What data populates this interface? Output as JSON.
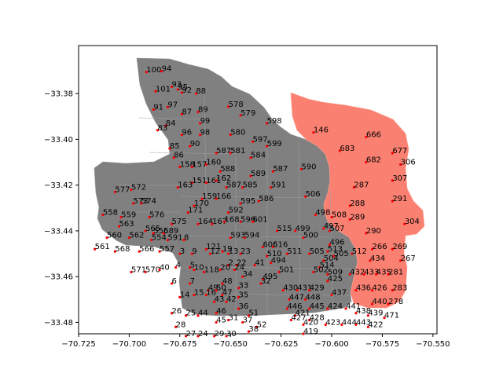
{
  "chart_data": {
    "type": "scatter",
    "title": "",
    "xlabel": "",
    "ylabel": "",
    "xlim": [
      -70.725,
      -70.548
    ],
    "ylim": [
      -33.485,
      -33.359
    ],
    "xticks": [
      -70.725,
      -70.7,
      -70.675,
      -70.65,
      -70.625,
      -70.6,
      -70.575,
      -70.55
    ],
    "yticks": [
      -33.48,
      -33.46,
      -33.44,
      -33.42,
      -33.4,
      -33.38
    ],
    "xtick_labels": [
      "−70.725",
      "−70.700",
      "−70.675",
      "−70.650",
      "−70.625",
      "−70.600",
      "−70.575",
      "−70.550"
    ],
    "ytick_labels": [
      "−33.48",
      "−33.46",
      "−33.44",
      "−33.42",
      "−33.40",
      "−33.38"
    ],
    "grid": false,
    "colors": {
      "base_region": "#808080",
      "highlight_region": "#fa8072",
      "marker": "#ff0000"
    },
    "points": [
      {
        "label": "100",
        "x": -70.6915,
        "y": -33.3706
      },
      {
        "label": "94",
        "x": -70.684,
        "y": -33.3702
      },
      {
        "label": "101",
        "x": -70.687,
        "y": -33.379
      },
      {
        "label": "93",
        "x": -70.679,
        "y": -33.377
      },
      {
        "label": "95",
        "x": -70.676,
        "y": -33.3782
      },
      {
        "label": "92",
        "x": -70.674,
        "y": -33.3796
      },
      {
        "label": "88",
        "x": -70.667,
        "y": -33.38
      },
      {
        "label": "97",
        "x": -70.681,
        "y": -33.3859
      },
      {
        "label": "91",
        "x": -70.688,
        "y": -33.387
      },
      {
        "label": "87",
        "x": -70.674,
        "y": -33.389
      },
      {
        "label": "89",
        "x": -70.666,
        "y": -33.388
      },
      {
        "label": "578",
        "x": -70.651,
        "y": -33.3857
      },
      {
        "label": "579",
        "x": -70.645,
        "y": -33.3895
      },
      {
        "label": "84",
        "x": -70.682,
        "y": -33.394
      },
      {
        "label": "83",
        "x": -70.686,
        "y": -33.396
      },
      {
        "label": "99",
        "x": -70.665,
        "y": -33.393
      },
      {
        "label": "96",
        "x": -70.674,
        "y": -33.398
      },
      {
        "label": "98",
        "x": -70.665,
        "y": -33.398
      },
      {
        "label": "580",
        "x": -70.65,
        "y": -33.398
      },
      {
        "label": "598",
        "x": -70.632,
        "y": -33.393
      },
      {
        "label": "146",
        "x": -70.609,
        "y": -33.397
      },
      {
        "label": "666",
        "x": -70.583,
        "y": -33.399
      },
      {
        "label": "85",
        "x": -70.68,
        "y": -33.404
      },
      {
        "label": "90",
        "x": -70.67,
        "y": -33.403
      },
      {
        "label": "597",
        "x": -70.639,
        "y": -33.401
      },
      {
        "label": "599",
        "x": -70.632,
        "y": -33.403
      },
      {
        "label": "86",
        "x": -70.678,
        "y": -33.408
      },
      {
        "label": "587",
        "x": -70.657,
        "y": -33.406
      },
      {
        "label": "581",
        "x": -70.65,
        "y": -33.406
      },
      {
        "label": "584",
        "x": -70.64,
        "y": -33.408
      },
      {
        "label": "683",
        "x": -70.596,
        "y": -33.405
      },
      {
        "label": "677",
        "x": -70.57,
        "y": -33.406
      },
      {
        "label": "158",
        "x": -70.675,
        "y": -33.412
      },
      {
        "label": "157",
        "x": -70.669,
        "y": -33.412
      },
      {
        "label": "160",
        "x": -70.662,
        "y": -33.411
      },
      {
        "label": "682",
        "x": -70.583,
        "y": -33.41
      },
      {
        "label": "306",
        "x": -70.566,
        "y": -33.411
      },
      {
        "label": "588",
        "x": -70.655,
        "y": -33.414
      },
      {
        "label": "589",
        "x": -70.64,
        "y": -33.416
      },
      {
        "label": "587",
        "x": -70.629,
        "y": -33.414
      },
      {
        "label": "590",
        "x": -70.615,
        "y": -33.413
      },
      {
        "label": "307",
        "x": -70.57,
        "y": -33.418
      },
      {
        "label": "151",
        "x": -70.669,
        "y": -33.419
      },
      {
        "label": "161",
        "x": -70.662,
        "y": -33.419
      },
      {
        "label": "162",
        "x": -70.657,
        "y": -33.418
      },
      {
        "label": "587",
        "x": -70.652,
        "y": -33.421
      },
      {
        "label": "585",
        "x": -70.644,
        "y": -33.421
      },
      {
        "label": "591",
        "x": -70.63,
        "y": -33.421
      },
      {
        "label": "163",
        "x": -70.676,
        "y": -33.421
      },
      {
        "label": "287",
        "x": -70.589,
        "y": -33.421
      },
      {
        "label": "577",
        "x": -70.707,
        "y": -33.423
      },
      {
        "label": "572",
        "x": -70.699,
        "y": -33.422
      },
      {
        "label": "506",
        "x": -70.613,
        "y": -33.425
      },
      {
        "label": "291",
        "x": -70.57,
        "y": -33.427
      },
      {
        "label": "159",
        "x": -70.664,
        "y": -33.426
      },
      {
        "label": "166",
        "x": -70.657,
        "y": -33.426
      },
      {
        "label": "595",
        "x": -70.645,
        "y": -33.428
      },
      {
        "label": "586",
        "x": -70.636,
        "y": -33.427
      },
      {
        "label": "573",
        "x": -70.698,
        "y": -33.428
      },
      {
        "label": "574",
        "x": -70.694,
        "y": -33.428
      },
      {
        "label": "170",
        "x": -70.668,
        "y": -33.429
      },
      {
        "label": "288",
        "x": -70.591,
        "y": -33.429
      },
      {
        "label": "171",
        "x": -70.671,
        "y": -33.432
      },
      {
        "label": "592",
        "x": -70.651,
        "y": -33.432
      },
      {
        "label": "498",
        "x": -70.608,
        "y": -33.433
      },
      {
        "label": "508",
        "x": -70.6,
        "y": -33.434
      },
      {
        "label": "558",
        "x": -70.713,
        "y": -33.433
      },
      {
        "label": "559",
        "x": -70.704,
        "y": -33.434
      },
      {
        "label": "576",
        "x": -70.69,
        "y": -33.434
      },
      {
        "label": "289",
        "x": -70.591,
        "y": -33.435
      },
      {
        "label": "575",
        "x": -70.679,
        "y": -33.437
      },
      {
        "label": "164",
        "x": -70.666,
        "y": -33.437
      },
      {
        "label": "167",
        "x": -70.659,
        "y": -33.437
      },
      {
        "label": "168",
        "x": -70.653,
        "y": -33.436
      },
      {
        "label": "596",
        "x": -70.645,
        "y": -33.436
      },
      {
        "label": "601",
        "x": -70.639,
        "y": -33.436
      },
      {
        "label": "304",
        "x": -70.564,
        "y": -33.437
      },
      {
        "label": "563",
        "x": -70.705,
        "y": -33.438
      },
      {
        "label": "565",
        "x": -70.692,
        "y": -33.44
      },
      {
        "label": "556",
        "x": -70.688,
        "y": -33.441
      },
      {
        "label": "589",
        "x": -70.683,
        "y": -33.441
      },
      {
        "label": "497",
        "x": -70.604,
        "y": -33.439
      },
      {
        "label": "515",
        "x": -70.627,
        "y": -33.44
      },
      {
        "label": "499",
        "x": -70.618,
        "y": -33.44
      },
      {
        "label": "507",
        "x": -70.601,
        "y": -33.44
      },
      {
        "label": "290",
        "x": -70.583,
        "y": -33.441
      },
      {
        "label": "560",
        "x": -70.711,
        "y": -33.443
      },
      {
        "label": "562",
        "x": -70.7,
        "y": -33.443
      },
      {
        "label": "554",
        "x": -70.689,
        "y": -33.444
      },
      {
        "label": "591",
        "x": -70.681,
        "y": -33.444
      },
      {
        "label": "8",
        "x": -70.673,
        "y": -33.444
      },
      {
        "label": "593",
        "x": -70.65,
        "y": -33.443
      },
      {
        "label": "594",
        "x": -70.643,
        "y": -33.443
      },
      {
        "label": "500",
        "x": -70.614,
        "y": -33.443
      },
      {
        "label": "496",
        "x": -70.601,
        "y": -33.446
      },
      {
        "label": "606",
        "x": -70.634,
        "y": -33.447
      },
      {
        "label": "516",
        "x": -70.629,
        "y": -33.447
      },
      {
        "label": "121",
        "x": -70.662,
        "y": -33.448
      },
      {
        "label": "19",
        "x": -70.654,
        "y": -33.449
      },
      {
        "label": "266",
        "x": -70.58,
        "y": -33.448
      },
      {
        "label": "269",
        "x": -70.57,
        "y": -33.448
      },
      {
        "label": "513",
        "x": -70.602,
        "y": -33.449
      },
      {
        "label": "561",
        "x": -70.717,
        "y": -33.448
      },
      {
        "label": "568",
        "x": -70.707,
        "y": -33.449
      },
      {
        "label": "566",
        "x": -70.695,
        "y": -33.449
      },
      {
        "label": "557",
        "x": -70.685,
        "y": -33.449
      },
      {
        "label": "3",
        "x": -70.675,
        "y": -33.45
      },
      {
        "label": "9",
        "x": -70.669,
        "y": -33.45
      },
      {
        "label": "12",
        "x": -70.66,
        "y": -33.45
      },
      {
        "label": "13",
        "x": -70.651,
        "y": -33.45
      },
      {
        "label": "23",
        "x": -70.645,
        "y": -33.45
      },
      {
        "label": "511",
        "x": -70.622,
        "y": -33.45
      },
      {
        "label": "505",
        "x": -70.611,
        "y": -33.45
      },
      {
        "label": "512",
        "x": -70.59,
        "y": -33.45
      },
      {
        "label": "510",
        "x": -70.632,
        "y": -33.451
      },
      {
        "label": "505",
        "x": -70.599,
        "y": -33.451
      },
      {
        "label": "434",
        "x": -70.581,
        "y": -33.453
      },
      {
        "label": "267",
        "x": -70.566,
        "y": -33.453
      },
      {
        "label": "504",
        "x": -70.604,
        "y": -33.453
      },
      {
        "label": "494",
        "x": -70.63,
        "y": -33.454
      },
      {
        "label": "2",
        "x": -70.651,
        "y": -33.455
      },
      {
        "label": "22",
        "x": -70.647,
        "y": -33.455
      },
      {
        "label": "41",
        "x": -70.638,
        "y": -33.455
      },
      {
        "label": "514",
        "x": -70.606,
        "y": -33.456
      },
      {
        "label": "4",
        "x": -70.677,
        "y": -33.456
      },
      {
        "label": "5",
        "x": -70.67,
        "y": -33.456
      },
      {
        "label": "10",
        "x": -70.668,
        "y": -33.457
      },
      {
        "label": "20",
        "x": -70.655,
        "y": -33.457
      },
      {
        "label": "24",
        "x": -70.648,
        "y": -33.457
      },
      {
        "label": "502",
        "x": -70.609,
        "y": -33.458
      },
      {
        "label": "571",
        "x": -70.699,
        "y": -33.458
      },
      {
        "label": "570",
        "x": -70.692,
        "y": -33.458
      },
      {
        "label": "40",
        "x": -70.685,
        "y": -33.457
      },
      {
        "label": "118",
        "x": -70.663,
        "y": -33.458
      },
      {
        "label": "501",
        "x": -70.626,
        "y": -33.458
      },
      {
        "label": "509",
        "x": -70.602,
        "y": -33.459
      },
      {
        "label": "432",
        "x": -70.591,
        "y": -33.459
      },
      {
        "label": "433",
        "x": -70.584,
        "y": -33.459
      },
      {
        "label": "435",
        "x": -70.578,
        "y": -33.459
      },
      {
        "label": "281",
        "x": -70.572,
        "y": -33.459
      },
      {
        "label": "34",
        "x": -70.644,
        "y": -33.46
      },
      {
        "label": "495",
        "x": -70.634,
        "y": -33.461
      },
      {
        "label": "32",
        "x": -70.635,
        "y": -33.463
      },
      {
        "label": "425",
        "x": -70.602,
        "y": -33.462
      },
      {
        "label": "6",
        "x": -70.679,
        "y": -33.463
      },
      {
        "label": "7",
        "x": -70.67,
        "y": -33.463
      },
      {
        "label": "48",
        "x": -70.654,
        "y": -33.463
      },
      {
        "label": "33",
        "x": -70.646,
        "y": -33.465
      },
      {
        "label": "49",
        "x": -70.661,
        "y": -33.466
      },
      {
        "label": "50",
        "x": -70.657,
        "y": -33.466
      },
      {
        "label": "430",
        "x": -70.624,
        "y": -33.466
      },
      {
        "label": "431",
        "x": -70.617,
        "y": -33.466
      },
      {
        "label": "429",
        "x": -70.611,
        "y": -33.466
      },
      {
        "label": "436",
        "x": -70.588,
        "y": -33.466
      },
      {
        "label": "426",
        "x": -70.58,
        "y": -33.466
      },
      {
        "label": "283",
        "x": -70.57,
        "y": -33.466
      },
      {
        "label": "437",
        "x": -70.6,
        "y": -33.468
      },
      {
        "label": "47",
        "x": -70.654,
        "y": -33.468
      },
      {
        "label": "35",
        "x": -70.646,
        "y": -33.469
      },
      {
        "label": "447",
        "x": -70.621,
        "y": -33.47
      },
      {
        "label": "14",
        "x": -70.675,
        "y": -33.469
      },
      {
        "label": "15",
        "x": -70.668,
        "y": -33.468
      },
      {
        "label": "16",
        "x": -70.662,
        "y": -33.468
      },
      {
        "label": "448",
        "x": -70.613,
        "y": -33.47
      },
      {
        "label": "43",
        "x": -70.658,
        "y": -33.471
      },
      {
        "label": "42",
        "x": -70.652,
        "y": -33.471
      },
      {
        "label": "440",
        "x": -70.58,
        "y": -33.472
      },
      {
        "label": "278",
        "x": -70.572,
        "y": -33.472
      },
      {
        "label": "36",
        "x": -70.646,
        "y": -33.474
      },
      {
        "label": "446",
        "x": -70.622,
        "y": -33.474
      },
      {
        "label": "445",
        "x": -70.611,
        "y": -33.474
      },
      {
        "label": "424",
        "x": -70.602,
        "y": -33.474
      },
      {
        "label": "441",
        "x": -70.593,
        "y": -33.474
      },
      {
        "label": "46",
        "x": -70.657,
        "y": -33.476
      },
      {
        "label": "51",
        "x": -70.641,
        "y": -33.477
      },
      {
        "label": "421",
        "x": -70.618,
        "y": -33.477
      },
      {
        "label": "438",
        "x": -70.588,
        "y": -33.476
      },
      {
        "label": "26",
        "x": -70.679,
        "y": -33.476
      },
      {
        "label": "25",
        "x": -70.672,
        "y": -33.477
      },
      {
        "label": "44",
        "x": -70.666,
        "y": -33.477
      },
      {
        "label": "439",
        "x": -70.582,
        "y": -33.477
      },
      {
        "label": "471",
        "x": -70.574,
        "y": -33.478
      },
      {
        "label": "427",
        "x": -70.62,
        "y": -33.479
      },
      {
        "label": "428",
        "x": -70.611,
        "y": -33.479
      },
      {
        "label": "31",
        "x": -70.651,
        "y": -33.479
      },
      {
        "label": "37",
        "x": -70.644,
        "y": -33.48
      },
      {
        "label": "45",
        "x": -70.657,
        "y": -33.48
      },
      {
        "label": "420",
        "x": -70.614,
        "y": -33.481
      },
      {
        "label": "423",
        "x": -70.603,
        "y": -33.481
      },
      {
        "label": "444",
        "x": -70.595,
        "y": -33.481
      },
      {
        "label": "443",
        "x": -70.588,
        "y": -33.481
      },
      {
        "label": "422",
        "x": -70.582,
        "y": -33.482
      },
      {
        "label": "52",
        "x": -70.637,
        "y": -33.482
      },
      {
        "label": "28",
        "x": -70.677,
        "y": -33.482
      },
      {
        "label": "38",
        "x": -70.641,
        "y": -33.484
      },
      {
        "label": "419",
        "x": -70.614,
        "y": -33.485
      },
      {
        "label": "27",
        "x": -70.672,
        "y": -33.486
      },
      {
        "label": "24",
        "x": -70.666,
        "y": -33.486
      },
      {
        "label": "29",
        "x": -70.658,
        "y": -33.486
      },
      {
        "label": "30",
        "x": -70.652,
        "y": -33.486
      }
    ]
  }
}
